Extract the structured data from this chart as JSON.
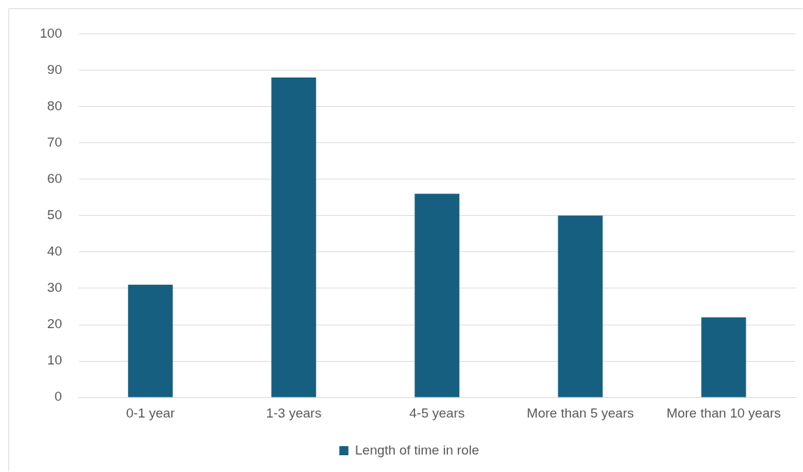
{
  "chart_data": {
    "type": "bar",
    "categories": [
      "0-1 year",
      "1-3 years",
      "4-5 years",
      "More than 5 years",
      "More than 10 years"
    ],
    "series": [
      {
        "name": "Length of time in role",
        "color": "#175f80",
        "values": [
          31,
          88,
          56,
          50,
          22
        ]
      }
    ],
    "ylim": [
      0,
      100
    ],
    "yticks": [
      0,
      10,
      20,
      30,
      40,
      50,
      60,
      70,
      80,
      90,
      100
    ],
    "grid": "y",
    "legend": "bottom"
  }
}
